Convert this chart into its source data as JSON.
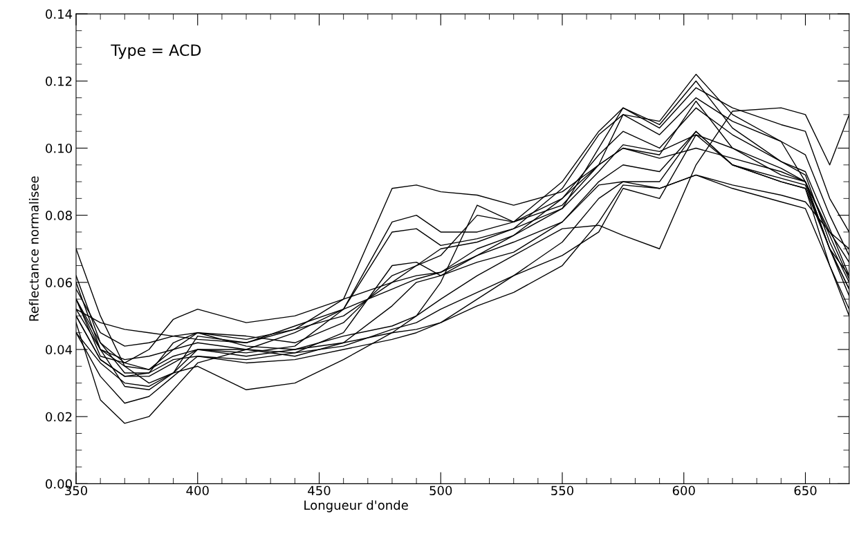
{
  "chart_data": {
    "type": "line",
    "xlabel": "Longueur d'onde",
    "ylabel": "Reflectance normalisee",
    "annotations": [
      "Type = ACD"
    ],
    "x": [
      350,
      360,
      370,
      380,
      390,
      400,
      420,
      440,
      460,
      480,
      490,
      500,
      515,
      530,
      550,
      565,
      575,
      590,
      605,
      620,
      640,
      650,
      660,
      668
    ],
    "xlim": [
      350,
      668
    ],
    "xticks": [
      350,
      400,
      450,
      500,
      550,
      600,
      650
    ],
    "ylim": [
      0,
      0.14
    ],
    "yticks": [
      {
        "value": 0,
        "label": "0.00"
      },
      {
        "value": 0.02,
        "label": "0.02"
      },
      {
        "value": 0.04,
        "label": "0.04"
      },
      {
        "value": 0.06,
        "label": "0.06"
      },
      {
        "value": 0.08,
        "label": "0.08"
      },
      {
        "value": 0.1,
        "label": "0.10"
      },
      {
        "value": 0.12,
        "label": "0.12"
      },
      {
        "value": 0.14,
        "label": "0.14"
      }
    ],
    "grid": false,
    "marker": "none",
    "line_style": "solid",
    "series": [
      {
        "color": "#000000",
        "values": [
          0.058,
          0.045,
          0.041,
          0.042,
          0.044,
          0.045,
          0.043,
          0.046,
          0.055,
          0.088,
          0.089,
          0.087,
          0.086,
          0.083,
          0.087,
          0.095,
          0.11,
          0.108,
          0.122,
          0.11,
          0.102,
          0.09,
          0.075,
          0.066
        ]
      },
      {
        "color": "#000000",
        "values": [
          0.055,
          0.042,
          0.036,
          0.034,
          0.04,
          0.045,
          0.044,
          0.042,
          0.048,
          0.062,
          0.065,
          0.068,
          0.08,
          0.078,
          0.09,
          0.105,
          0.112,
          0.106,
          0.118,
          0.112,
          0.107,
          0.105,
          0.085,
          0.075
        ]
      },
      {
        "color": "#000000",
        "values": [
          0.045,
          0.036,
          0.03,
          0.029,
          0.033,
          0.035,
          0.028,
          0.03,
          0.037,
          0.045,
          0.05,
          0.055,
          0.062,
          0.068,
          0.076,
          0.077,
          0.074,
          0.07,
          0.095,
          0.111,
          0.112,
          0.11,
          0.095,
          0.11
        ]
      },
      {
        "color": "#000000",
        "values": [
          0.05,
          0.037,
          0.032,
          0.032,
          0.036,
          0.04,
          0.038,
          0.04,
          0.044,
          0.047,
          0.05,
          0.06,
          0.083,
          0.078,
          0.083,
          0.095,
          0.1,
          0.098,
          0.114,
          0.1,
          0.092,
          0.09,
          0.07,
          0.058
        ]
      },
      {
        "color": "#000000",
        "values": [
          0.06,
          0.04,
          0.029,
          0.028,
          0.033,
          0.044,
          0.042,
          0.046,
          0.05,
          0.06,
          0.062,
          0.063,
          0.07,
          0.074,
          0.082,
          0.1,
          0.112,
          0.107,
          0.12,
          0.106,
          0.096,
          0.092,
          0.072,
          0.06
        ]
      },
      {
        "color": "#000000",
        "values": [
          0.048,
          0.025,
          0.018,
          0.02,
          0.028,
          0.036,
          0.04,
          0.038,
          0.042,
          0.045,
          0.046,
          0.048,
          0.055,
          0.062,
          0.072,
          0.085,
          0.09,
          0.09,
          0.105,
          0.095,
          0.09,
          0.088,
          0.065,
          0.05
        ]
      },
      {
        "color": "#000000",
        "values": [
          0.045,
          0.032,
          0.024,
          0.026,
          0.032,
          0.038,
          0.036,
          0.037,
          0.04,
          0.043,
          0.045,
          0.048,
          0.053,
          0.057,
          0.065,
          0.078,
          0.089,
          0.088,
          0.092,
          0.088,
          0.084,
          0.082,
          0.065,
          0.052
        ]
      },
      {
        "color": "#000000",
        "values": [
          0.055,
          0.04,
          0.035,
          0.034,
          0.038,
          0.04,
          0.039,
          0.041,
          0.052,
          0.078,
          0.08,
          0.075,
          0.075,
          0.078,
          0.085,
          0.098,
          0.105,
          0.1,
          0.112,
          0.104,
          0.096,
          0.093,
          0.076,
          0.062
        ]
      },
      {
        "color": "#000000",
        "values": [
          0.052,
          0.04,
          0.037,
          0.038,
          0.04,
          0.042,
          0.04,
          0.045,
          0.052,
          0.075,
          0.076,
          0.071,
          0.073,
          0.076,
          0.082,
          0.093,
          0.101,
          0.099,
          0.104,
          0.1,
          0.094,
          0.09,
          0.074,
          0.061
        ]
      },
      {
        "color": "#000000",
        "values": [
          0.05,
          0.037,
          0.032,
          0.033,
          0.037,
          0.038,
          0.037,
          0.039,
          0.045,
          0.065,
          0.066,
          0.062,
          0.066,
          0.069,
          0.078,
          0.09,
          0.095,
          0.093,
          0.105,
          0.095,
          0.09,
          0.088,
          0.07,
          0.058
        ]
      },
      {
        "color": "#000000",
        "values": [
          0.052,
          0.048,
          0.046,
          0.045,
          0.044,
          0.043,
          0.042,
          0.047,
          0.052,
          0.058,
          0.061,
          0.063,
          0.068,
          0.074,
          0.085,
          0.095,
          0.1,
          0.097,
          0.1,
          0.097,
          0.093,
          0.09,
          0.07,
          0.056
        ]
      },
      {
        "color": "#000000",
        "values": [
          0.055,
          0.038,
          0.036,
          0.04,
          0.049,
          0.052,
          0.048,
          0.05,
          0.055,
          0.06,
          0.065,
          0.07,
          0.072,
          0.076,
          0.088,
          0.104,
          0.11,
          0.104,
          0.115,
          0.108,
          0.102,
          0.098,
          0.08,
          0.068
        ]
      },
      {
        "color": "#000000",
        "values": [
          0.062,
          0.042,
          0.033,
          0.033,
          0.042,
          0.045,
          0.041,
          0.04,
          0.042,
          0.053,
          0.06,
          0.062,
          0.068,
          0.072,
          0.078,
          0.089,
          0.09,
          0.088,
          0.092,
          0.089,
          0.086,
          0.084,
          0.075,
          0.07
        ]
      },
      {
        "color": "#000000",
        "values": [
          0.07,
          0.05,
          0.035,
          0.03,
          0.033,
          0.04,
          0.04,
          0.039,
          0.041,
          0.046,
          0.048,
          0.052,
          0.057,
          0.062,
          0.068,
          0.075,
          0.088,
          0.085,
          0.104,
          0.095,
          0.091,
          0.089,
          0.07,
          0.062
        ]
      }
    ]
  }
}
